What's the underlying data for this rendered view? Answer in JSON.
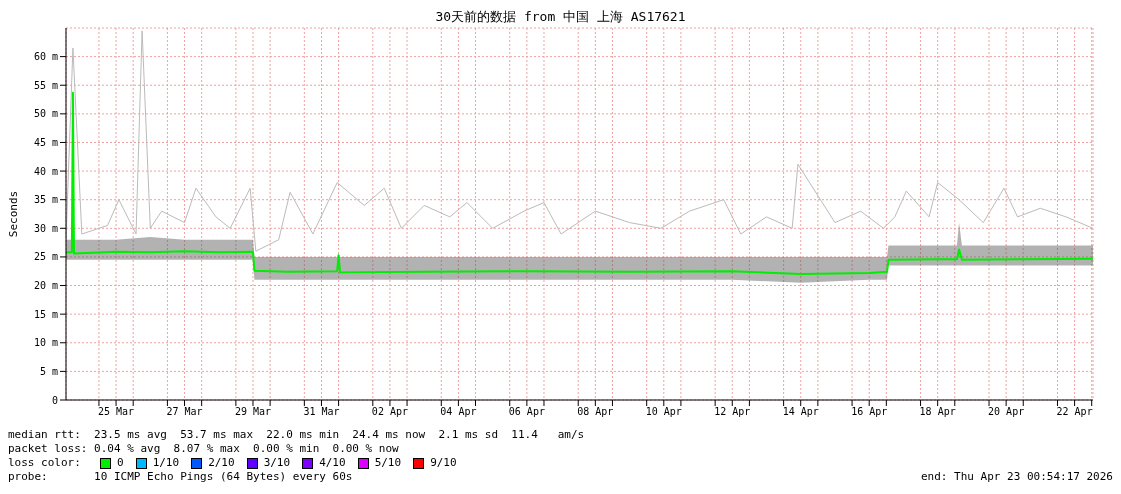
{
  "chart_data": {
    "type": "line",
    "title": "30天前的数据 from 中国 上海 AS17621",
    "ylabel": "Seconds",
    "legend_title": "loss color:",
    "legend": "bottom",
    "grid": true,
    "xlim": [
      "2026-03-24T00:54",
      "2026-04-23T00:54"
    ],
    "xticks": [
      {
        "value": "2026-03-25T00:00",
        "label": null
      },
      {
        "value": "2026-03-25T12:00",
        "label": "25 Mar"
      },
      {
        "value": "2026-03-26T00:00",
        "label": null
      },
      {
        "value": "2026-03-27T00:00",
        "label": null
      },
      {
        "value": "2026-03-27T12:00",
        "label": "27 Mar"
      },
      {
        "value": "2026-03-28T00:00",
        "label": null
      },
      {
        "value": "2026-03-29T00:00",
        "label": null
      },
      {
        "value": "2026-03-29T12:00",
        "label": "29 Mar"
      },
      {
        "value": "2026-03-30T00:00",
        "label": null
      },
      {
        "value": "2026-03-31T00:00",
        "label": null
      },
      {
        "value": "2026-03-31T12:00",
        "label": "31 Mar"
      },
      {
        "value": "2026-04-01T00:00",
        "label": null
      },
      {
        "value": "2026-04-02T00:00",
        "label": null
      },
      {
        "value": "2026-04-02T12:00",
        "label": "02 Apr"
      },
      {
        "value": "2026-04-03T00:00",
        "label": null
      },
      {
        "value": "2026-04-04T00:00",
        "label": null
      },
      {
        "value": "2026-04-04T12:00",
        "label": "04 Apr"
      },
      {
        "value": "2026-04-05T00:00",
        "label": null
      },
      {
        "value": "2026-04-06T00:00",
        "label": null
      },
      {
        "value": "2026-04-06T12:00",
        "label": "06 Apr"
      },
      {
        "value": "2026-04-07T00:00",
        "label": null
      },
      {
        "value": "2026-04-08T00:00",
        "label": null
      },
      {
        "value": "2026-04-08T12:00",
        "label": "08 Apr"
      },
      {
        "value": "2026-04-09T00:00",
        "label": null
      },
      {
        "value": "2026-04-10T00:00",
        "label": null
      },
      {
        "value": "2026-04-10T12:00",
        "label": "10 Apr"
      },
      {
        "value": "2026-04-11T00:00",
        "label": null
      },
      {
        "value": "2026-04-12T00:00",
        "label": null
      },
      {
        "value": "2026-04-12T12:00",
        "label": "12 Apr"
      },
      {
        "value": "2026-04-13T00:00",
        "label": null
      },
      {
        "value": "2026-04-14T00:00",
        "label": null
      },
      {
        "value": "2026-04-14T12:00",
        "label": "14 Apr"
      },
      {
        "value": "2026-04-15T00:00",
        "label": null
      },
      {
        "value": "2026-04-16T00:00",
        "label": null
      },
      {
        "value": "2026-04-16T12:00",
        "label": "16 Apr"
      },
      {
        "value": "2026-04-17T00:00",
        "label": null
      },
      {
        "value": "2026-04-18T00:00",
        "label": null
      },
      {
        "value": "2026-04-18T12:00",
        "label": "18 Apr"
      },
      {
        "value": "2026-04-19T00:00",
        "label": null
      },
      {
        "value": "2026-04-20T00:00",
        "label": null
      },
      {
        "value": "2026-04-20T12:00",
        "label": "20 Apr"
      },
      {
        "value": "2026-04-21T00:00",
        "label": null
      },
      {
        "value": "2026-04-22T00:00",
        "label": null
      },
      {
        "value": "2026-04-22T12:00",
        "label": "22 Apr"
      },
      {
        "value": "2026-04-23T00:00",
        "label": null
      }
    ],
    "ylim": [
      0,
      65
    ],
    "yticks": [
      0,
      {
        "value": 5,
        "label": "5 m"
      },
      {
        "value": 10,
        "label": "10 m"
      },
      {
        "value": 15,
        "label": "15 m"
      },
      {
        "value": 20,
        "label": "20 m"
      },
      {
        "value": 25,
        "label": "25 m"
      },
      {
        "value": 30,
        "label": "30 m"
      },
      {
        "value": 35,
        "label": "35 m"
      },
      {
        "value": 40,
        "label": "40 m"
      },
      {
        "value": 45,
        "label": "45 m"
      },
      {
        "value": 50,
        "label": "50 m"
      },
      {
        "value": 55,
        "label": "55 m"
      },
      {
        "value": 60,
        "label": "60 m"
      }
    ],
    "series": [
      {
        "color": "#bbbbbb",
        "x": [
          "2026-03-24T00:54",
          "2026-03-24T05:45",
          "2026-03-24T12:00",
          "2026-03-25T06:00",
          "2026-03-25T14:00",
          "2026-03-26T02:00",
          "2026-03-26T06:15",
          "2026-03-26T12:00",
          "2026-03-26T20:00",
          "2026-03-27T12:00",
          "2026-03-27T20:00",
          "2026-03-28T10:00",
          "2026-03-28T20:00",
          "2026-03-29T10:00",
          "2026-03-29T14:00",
          "2026-03-30T06:00",
          "2026-03-30T14:00",
          "2026-03-31T06:00",
          "2026-03-31T23:00",
          "2026-04-01T18:00",
          "2026-04-02T08:00",
          "2026-04-02T20:00",
          "2026-04-03T12:00",
          "2026-04-04T06:00",
          "2026-04-04T18:00",
          "2026-04-05T12:00",
          "2026-04-06T10:00",
          "2026-04-07T00:00",
          "2026-04-07T12:00",
          "2026-04-08T12:00",
          "2026-04-09T12:00",
          "2026-04-10T10:00",
          "2026-04-11T06:00",
          "2026-04-12T06:00",
          "2026-04-12T18:00",
          "2026-04-13T12:00",
          "2026-04-14T06:00",
          "2026-04-14T10:00",
          "2026-04-15T12:00",
          "2026-04-16T06:00",
          "2026-04-16T22:00",
          "2026-04-17T06:00",
          "2026-04-17T14:00",
          "2026-04-18T06:00",
          "2026-04-18T12:00",
          "2026-04-19T03:00",
          "2026-04-19T20:00",
          "2026-04-20T10:30",
          "2026-04-20T20:00",
          "2026-04-21T12:00",
          "2026-04-22T06:00",
          "2026-04-23T00:54"
        ],
        "values": [
          28,
          61.5,
          29,
          30.5,
          35,
          29,
          64.5,
          30,
          33,
          31,
          37,
          32,
          30,
          37,
          26,
          28,
          36.3,
          29,
          38,
          34,
          37,
          30,
          34,
          32,
          34.5,
          30,
          33,
          34.5,
          29,
          33,
          31,
          30,
          33,
          35,
          29,
          32,
          30,
          41.2,
          31,
          33,
          30,
          32,
          36.5,
          32,
          38,
          35,
          31,
          37,
          32,
          33.5,
          32,
          30
        ]
      },
      {
        "name": "0",
        "color": "#00ee00",
        "x": [
          "2026-03-24T00:54",
          "2026-03-24T05:00",
          "2026-03-24T05:45",
          "2026-03-24T06:30",
          "2026-03-25T12:00",
          "2026-03-26T12:00",
          "2026-03-27T12:00",
          "2026-03-28T12:00",
          "2026-03-29T12:00",
          "2026-03-29T13:00",
          "2026-03-30T12:00",
          "2026-03-31T23:00",
          "2026-04-01T00:00",
          "2026-04-01T01:00",
          "2026-04-03T12:00",
          "2026-04-06T12:00",
          "2026-04-09T12:00",
          "2026-04-12T12:00",
          "2026-04-14T12:00",
          "2026-04-16T12:00",
          "2026-04-17T00:30",
          "2026-04-17T01:30",
          "2026-04-18T12:00",
          "2026-04-19T01:30",
          "2026-04-19T03:00",
          "2026-04-19T05:00",
          "2026-04-21T00:00",
          "2026-04-23T00:54"
        ],
        "values": [
          25.8,
          25.8,
          53.7,
          25.6,
          25.9,
          25.8,
          26,
          25.8,
          25.9,
          22.6,
          22.4,
          22.5,
          25.3,
          22.3,
          22.4,
          22.5,
          22.4,
          22.5,
          22,
          22.2,
          22.4,
          24.5,
          24.6,
          24.6,
          26.3,
          24.5,
          24.6,
          24.7
        ],
        "lower": [
          24.5,
          24.5,
          24.5,
          24.5,
          24.5,
          24.5,
          24.5,
          24.5,
          24.5,
          21,
          21,
          21,
          21,
          21,
          21,
          21,
          21,
          21,
          20.5,
          21,
          21,
          23.5,
          23.5,
          23.5,
          23.5,
          23.5,
          23.5,
          23.5
        ],
        "upper": [
          28,
          28,
          53.7,
          28,
          28,
          28.5,
          28,
          28,
          28,
          25,
          25,
          25,
          25.5,
          25,
          25,
          25,
          25,
          25,
          25,
          25,
          25,
          27,
          27,
          27,
          31,
          27,
          27,
          27
        ]
      },
      {
        "name": "1/10",
        "color": "#00b8ff"
      },
      {
        "name": "2/10",
        "color": "#0059ff"
      },
      {
        "name": "3/10",
        "color": "#5e00ff"
      },
      {
        "name": "4/10",
        "color": "#7e00ff"
      },
      {
        "name": "5/10",
        "color": "#dd00ff"
      },
      {
        "name": "9/10",
        "color": "#ff0000"
      }
    ],
    "annotations": [
      "median rtt:  23.5 ms avg  53.7 ms max  22.0 ms min  24.4 ms now  2.1 ms sd  11.4   am/s",
      "packet loss: 0.04 % avg  8.07 % max  0.00 % min  0.00 % now",
      "probe:       10 ICMP Echo Pings (64 Bytes) every 60s",
      "end: Thu Apr 23 00:54:17 2026"
    ]
  }
}
